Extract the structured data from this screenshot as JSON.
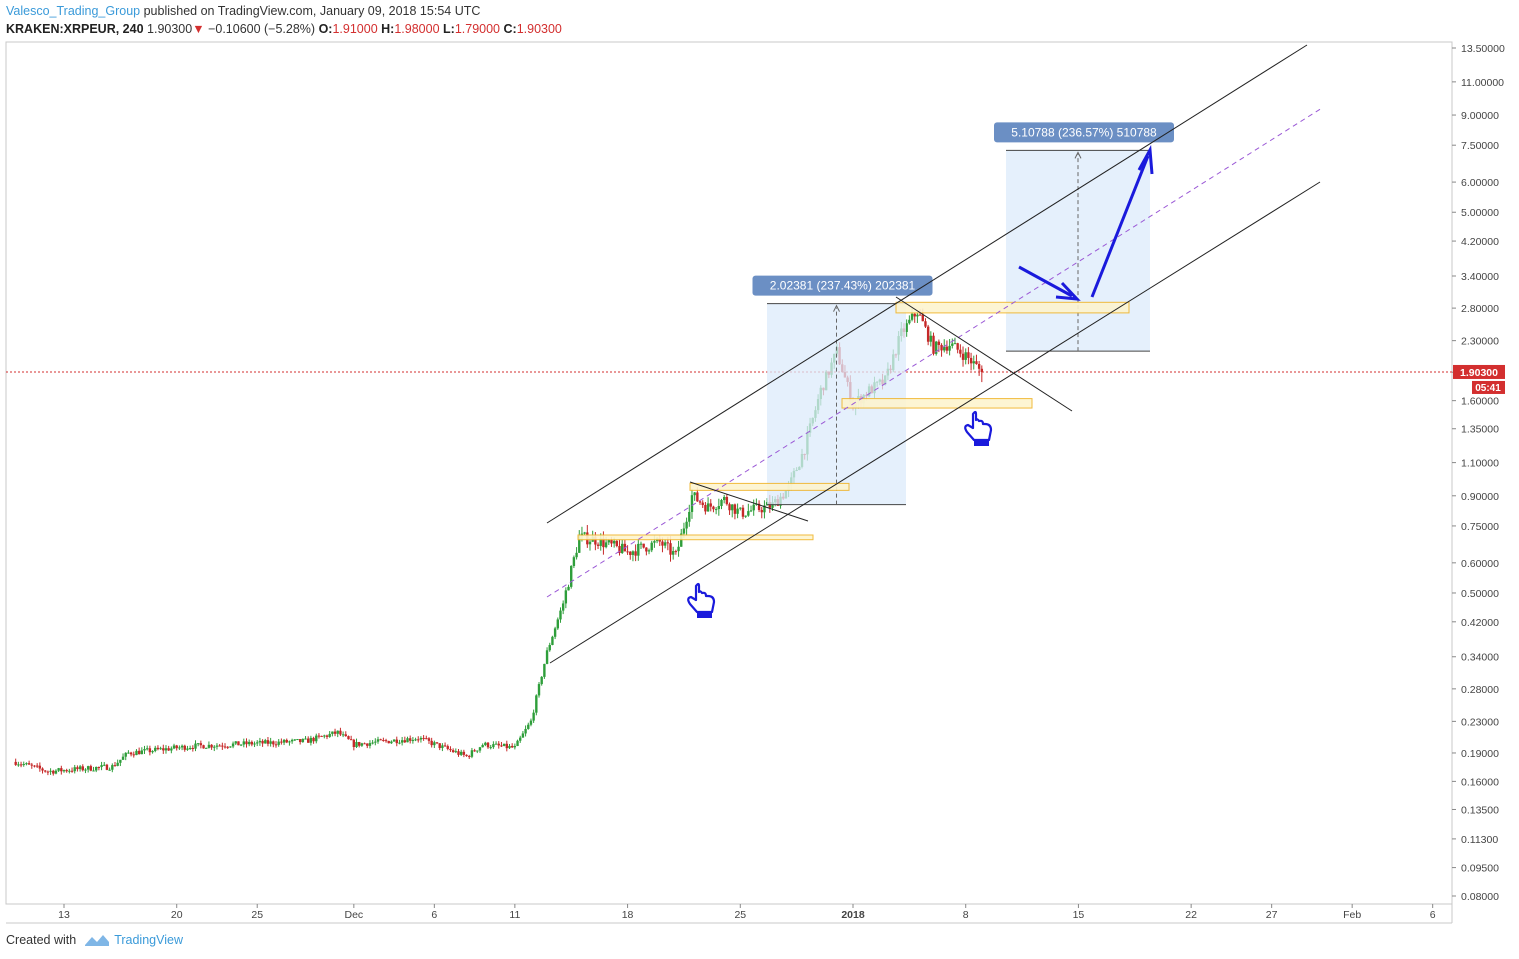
{
  "header": {
    "author": "Valesco_Trading_Group",
    "published_text": "published on TradingView.com, January 09, 2018 15:54 UTC",
    "symbol": "KRAKEN:XRPEUR, 240",
    "last": "1.90300",
    "change_arrow": "▼",
    "change": "−0.10600 (−5.28%)",
    "o_label": "O:",
    "o_value": "1.91000",
    "h_label": "H:",
    "h_value": "1.98000",
    "l_label": "L:",
    "l_value": "1.79000",
    "c_label": "C:",
    "c_value": "1.90300"
  },
  "footer": {
    "created_with": "Created with",
    "brand": "TradingView"
  },
  "chart_data": {
    "type": "candlestick",
    "symbol": "KRAKEN:XRPEUR",
    "interval": "240",
    "scale": "log",
    "ylim": [
      0.075,
      14.0
    ],
    "grid": false,
    "y_ticks": [
      "13.50000",
      "11.00000",
      "9.00000",
      "7.50000",
      "6.00000",
      "5.00000",
      "4.20000",
      "3.40000",
      "2.80000",
      "2.30000",
      "1.90000",
      "1.60000",
      "1.35000",
      "1.10000",
      "0.90000",
      "0.75000",
      "0.60000",
      "0.50000",
      "0.42000",
      "0.34000",
      "0.28000",
      "0.23000",
      "0.19000",
      "0.16000",
      "0.13500",
      "0.11300",
      "0.09500",
      "0.08000"
    ],
    "x_ticks": [
      "13",
      "20",
      "25",
      "Dec",
      "6",
      "11",
      "18",
      "25",
      "2018",
      "8",
      "15",
      "22",
      "27",
      "Feb",
      "6"
    ],
    "x_tick_bold": [
      "2018"
    ],
    "last_price_label": "1.90300",
    "countdown_label": "05:41",
    "colors": {
      "up": "#2e9e3a",
      "down": "#c62828",
      "channel": "#222222",
      "midline": "#9b59d6",
      "zone_fill": "#fdf4cf",
      "zone_stroke": "#f0b429",
      "box_fill": "#dcebfb",
      "arrow": "#1a1adc",
      "label_bg": "#6b8fc4",
      "price_line": "#d32f2f"
    },
    "series_keypoints": [
      {
        "date": "2017-11-10",
        "price": 0.18
      },
      {
        "date": "2017-11-12",
        "price": 0.17
      },
      {
        "date": "2017-11-16",
        "price": 0.175
      },
      {
        "date": "2017-11-17",
        "price": 0.19
      },
      {
        "date": "2017-11-21",
        "price": 0.198
      },
      {
        "date": "2017-11-28",
        "price": 0.204
      },
      {
        "date": "2017-11-30",
        "price": 0.215
      },
      {
        "date": "2017-12-01",
        "price": 0.2
      },
      {
        "date": "2017-12-05",
        "price": 0.208
      },
      {
        "date": "2017-12-08",
        "price": 0.186
      },
      {
        "date": "2017-12-09",
        "price": 0.2
      },
      {
        "date": "2017-12-11",
        "price": 0.196
      },
      {
        "date": "2017-12-12",
        "price": 0.23
      },
      {
        "date": "2017-12-13",
        "price": 0.35
      },
      {
        "date": "2017-12-14",
        "price": 0.47
      },
      {
        "date": "2017-12-15",
        "price": 0.7
      },
      {
        "date": "2017-12-16",
        "price": 0.69
      },
      {
        "date": "2017-12-18",
        "price": 0.64
      },
      {
        "date": "2017-12-20",
        "price": 0.68
      },
      {
        "date": "2017-12-21",
        "price": 0.625
      },
      {
        "date": "2017-12-22",
        "price": 0.9
      },
      {
        "date": "2017-12-23",
        "price": 0.84
      },
      {
        "date": "2017-12-24",
        "price": 0.88
      },
      {
        "date": "2017-12-25",
        "price": 0.81
      },
      {
        "date": "2017-12-27",
        "price": 0.85
      },
      {
        "date": "2017-12-28",
        "price": 0.94
      },
      {
        "date": "2017-12-29",
        "price": 1.2
      },
      {
        "date": "2017-12-30",
        "price": 1.7
      },
      {
        "date": "2017-12-31",
        "price": 2.15
      },
      {
        "date": "2018-01-01",
        "price": 1.56
      },
      {
        "date": "2018-01-02",
        "price": 1.7
      },
      {
        "date": "2018-01-03",
        "price": 1.8
      },
      {
        "date": "2018-01-04",
        "price": 2.4
      },
      {
        "date": "2018-01-05",
        "price": 2.75
      },
      {
        "date": "2018-01-06",
        "price": 2.2
      },
      {
        "date": "2018-01-07",
        "price": 2.25
      },
      {
        "date": "2018-01-08",
        "price": 2.1
      },
      {
        "date": "2018-01-09",
        "price": 1.903
      }
    ],
    "annotations": [
      {
        "type": "measure",
        "label": "2.02381 (237.43%) 202381",
        "from": 0.853,
        "to": 2.877
      },
      {
        "type": "measure",
        "label": "5.10788 (236.57%) 510788",
        "from": 2.159,
        "to": 7.267
      },
      {
        "type": "zone",
        "low": 0.69,
        "high": 0.71
      },
      {
        "type": "zone",
        "low": 0.93,
        "high": 0.97
      },
      {
        "type": "zone",
        "low": 2.72,
        "high": 2.9
      },
      {
        "type": "zone",
        "low": 1.53,
        "high": 1.62
      },
      {
        "type": "channel",
        "label": "ascending channel"
      }
    ]
  }
}
